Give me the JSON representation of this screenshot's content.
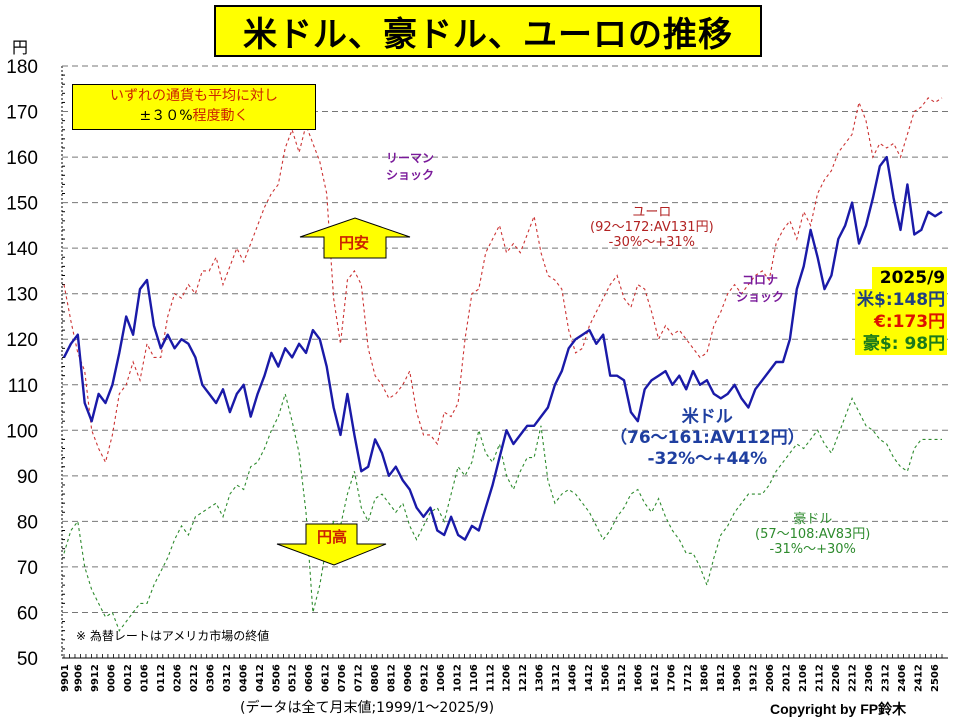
{
  "title": "米ドル、豪ドル、ユーロの推移",
  "unit_label": "円",
  "note_box": {
    "line1": "いずれの通貨も平均に対し",
    "line2_pct": "±３０%",
    "line2_rest": "程度動く"
  },
  "annotations": {
    "lehman": [
      "リーマン",
      "ショック"
    ],
    "corona": [
      "コロナ",
      "ショック"
    ],
    "yen_weak": "円安",
    "yen_strong": "円高"
  },
  "series_labels": {
    "euro": [
      "ユーロ",
      "(92～172:AV131円)",
      "-30%～+31%"
    ],
    "usd": [
      "米ドル",
      "（76～161:AV112円）",
      "-32%～+44%"
    ],
    "aud": [
      "豪ドル",
      "(57～108:AV83円)",
      "-31%～+30%"
    ]
  },
  "latest": {
    "date": "2025/9",
    "usd": "米$:148円",
    "eur": "€:173円",
    "aud": "豪$:  98円"
  },
  "footnote": "※ 為替レートはアメリカ市場の終値",
  "data_note": "(データは全て月末値;1999/1～2025/9)",
  "copyright": "Copyright by FP鈴木",
  "colors": {
    "usd": "#1a1aa8",
    "euro": "#cc3333",
    "aud": "#2e8b2e",
    "highlight": "#ffff00"
  },
  "chart_data": {
    "type": "line",
    "title": "米ドル、豪ドル、ユーロの推移",
    "ylabel": "円",
    "ylim": [
      50,
      180
    ],
    "yticks": [
      50,
      60,
      70,
      80,
      90,
      100,
      110,
      120,
      130,
      140,
      150,
      160,
      170,
      180
    ],
    "xlim": [
      "1999/1",
      "2025/9"
    ],
    "xticks": [
      "9901",
      "9906",
      "9912",
      "0006",
      "0012",
      "0106",
      "0112",
      "0206",
      "0212",
      "0306",
      "0312",
      "0406",
      "0412",
      "0506",
      "0512",
      "0606",
      "0612",
      "0706",
      "0712",
      "0806",
      "0812",
      "0906",
      "0912",
      "1006",
      "1012",
      "1106",
      "1112",
      "1206",
      "1212",
      "1306",
      "1312",
      "1406",
      "1412",
      "1506",
      "1512",
      "1606",
      "1612",
      "1706",
      "1712",
      "1806",
      "1812",
      "1906",
      "1912",
      "2006",
      "2012",
      "2106",
      "2112",
      "2206",
      "2212",
      "2306",
      "2312",
      "2406",
      "2412",
      "2506"
    ],
    "grid": true,
    "series": [
      {
        "name": "米ドル",
        "style": "solid",
        "sample_interval": "quarterly from 1999/1",
        "values": [
          116,
          119,
          121,
          106,
          102,
          108,
          106,
          110,
          117,
          125,
          121,
          131,
          133,
          123,
          118,
          121,
          118,
          120,
          119,
          116,
          110,
          108,
          106,
          109,
          104,
          108,
          110,
          103,
          108,
          112,
          117,
          114,
          118,
          116,
          119,
          117,
          122,
          120,
          114,
          105,
          99,
          108,
          99,
          91,
          92,
          98,
          95,
          90,
          92,
          89,
          87,
          83,
          81,
          83,
          78,
          77,
          81,
          77,
          76,
          79,
          78,
          83,
          88,
          94,
          100,
          97,
          99,
          101,
          101,
          103,
          105,
          110,
          113,
          118,
          120,
          121,
          122,
          119,
          121,
          112,
          112,
          111,
          104,
          102,
          109,
          111,
          112,
          113,
          110,
          112,
          109,
          113,
          110,
          111,
          108,
          107,
          108,
          110,
          107,
          105,
          109,
          111,
          113,
          115,
          115,
          120,
          131,
          136,
          144,
          138,
          131,
          134,
          142,
          145,
          150,
          141,
          145,
          151,
          158,
          160,
          151,
          144,
          154,
          143,
          144,
          148,
          147,
          148
        ]
      },
      {
        "name": "ユーロ",
        "style": "dashed",
        "sample_interval": "quarterly from 1999/1",
        "values": [
          132,
          124,
          117,
          113,
          100,
          96,
          93,
          99,
          108,
          110,
          115,
          111,
          119,
          116,
          116,
          125,
          130,
          129,
          132,
          130,
          135,
          135,
          138,
          132,
          136,
          140,
          137,
          141,
          145,
          149,
          152,
          154,
          162,
          166,
          161,
          167,
          163,
          159,
          152,
          129,
          119,
          133,
          135,
          132,
          118,
          112,
          110,
          107,
          108,
          110,
          113,
          104,
          99,
          99,
          97,
          104,
          103,
          106,
          120,
          130,
          131,
          139,
          142,
          145,
          139,
          141,
          139,
          143,
          147,
          139,
          134,
          133,
          131,
          122,
          117,
          118,
          123,
          126,
          129,
          132,
          134,
          129,
          127,
          132,
          131,
          126,
          120,
          123,
          121,
          122,
          120,
          118,
          116,
          117,
          123,
          126,
          130,
          132,
          130,
          132,
          134,
          135,
          133,
          141,
          144,
          146,
          142,
          148,
          145,
          152,
          155,
          157,
          161,
          163,
          165,
          172,
          168,
          160,
          163,
          162,
          163,
          160,
          165,
          170,
          171,
          173,
          172,
          173
        ]
      },
      {
        "name": "豪ドル",
        "style": "dashed",
        "sample_interval": "quarterly from 1999/1",
        "values": [
          73,
          78,
          80,
          70,
          65,
          62,
          59,
          60,
          56,
          58,
          60,
          62,
          62,
          66,
          69,
          72,
          76,
          79,
          77,
          81,
          82,
          83,
          84,
          81,
          86,
          88,
          87,
          92,
          93,
          96,
          100,
          103,
          108,
          102,
          95,
          82,
          60,
          66,
          75,
          80,
          79,
          86,
          91,
          83,
          80,
          85,
          86,
          84,
          82,
          84,
          79,
          76,
          79,
          82,
          83,
          80,
          86,
          92,
          90,
          93,
          100,
          95,
          93,
          97,
          90,
          87,
          91,
          94,
          94,
          101,
          89,
          84,
          86,
          87,
          86,
          84,
          82,
          79,
          76,
          78,
          81,
          83,
          86,
          87,
          84,
          82,
          85,
          81,
          78,
          76,
          73,
          73,
          70,
          66,
          72,
          77,
          79,
          82,
          84,
          86,
          86,
          86,
          88,
          91,
          93,
          95,
          97,
          96,
          98,
          100,
          97,
          95,
          99,
          103,
          107,
          104,
          101,
          100,
          98,
          97,
          94,
          92,
          91,
          96,
          98,
          98,
          98,
          98
        ]
      }
    ]
  }
}
